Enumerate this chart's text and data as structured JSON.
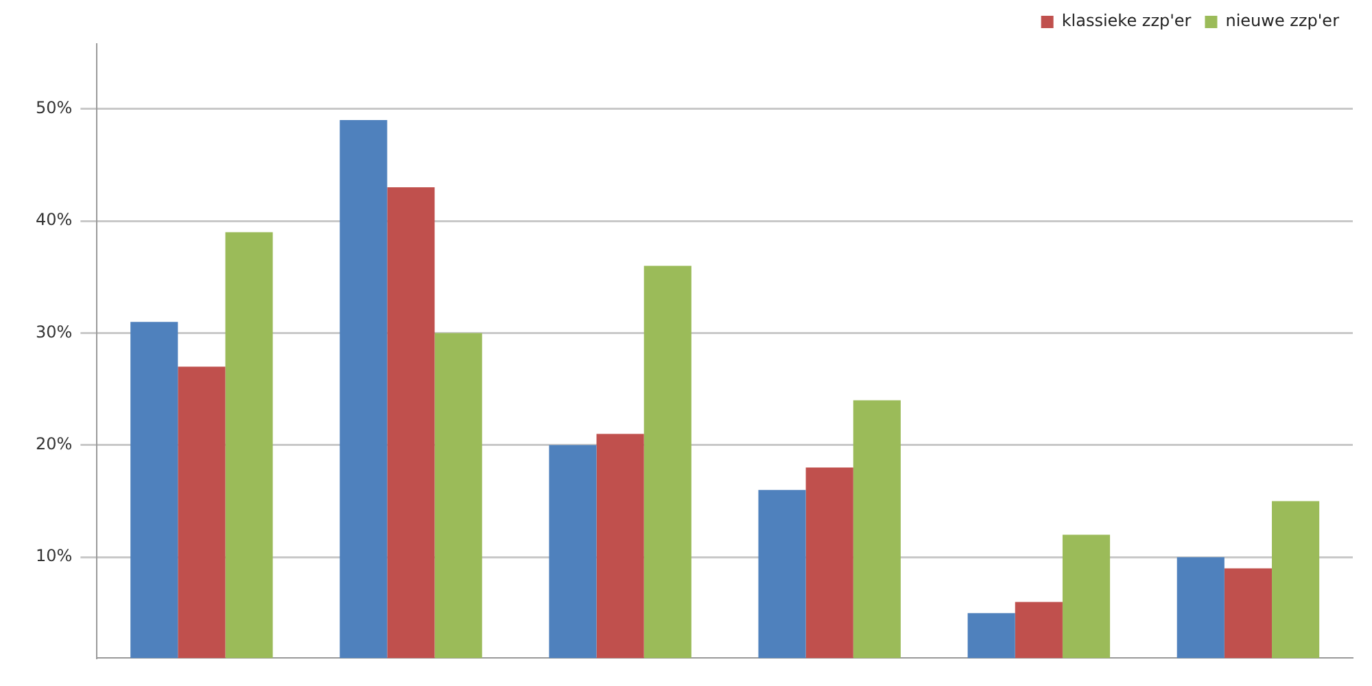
{
  "chart_data": {
    "type": "bar",
    "categories": [
      null,
      null,
      null,
      null,
      null,
      null
    ],
    "series": [
      {
        "color": "#4f81bd",
        "values": [
          31,
          49,
          20,
          16,
          5,
          10
        ]
      },
      {
        "name": "klassieke zzp'er",
        "color": "#c0504d",
        "values": [
          27,
          43,
          21,
          18,
          6,
          9
        ]
      },
      {
        "name": "nieuwe zzp'er",
        "color": "#9bbb59",
        "values": [
          39,
          30,
          36,
          24,
          12,
          15
        ]
      }
    ],
    "ylim": [
      1,
      55.8
    ],
    "yticks": [
      {
        "value": 10,
        "label": "10%"
      },
      {
        "value": 20,
        "label": "20%"
      },
      {
        "value": 30,
        "label": "30%"
      },
      {
        "value": 40,
        "label": "40%"
      },
      {
        "value": 50,
        "label": "50%"
      }
    ],
    "grid": "y",
    "legend": "top right"
  }
}
